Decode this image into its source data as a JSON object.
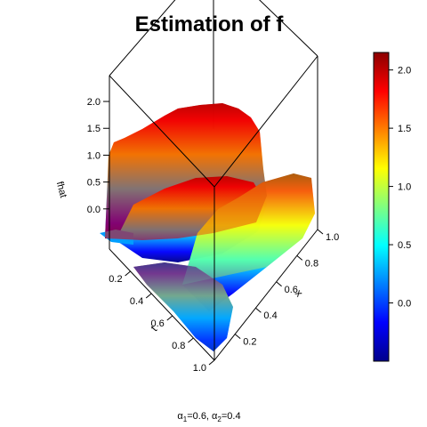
{
  "title": "Estimation of f",
  "caption": {
    "a1_sym": "α",
    "a1_sub": "1",
    "a1_val": "=0.6, ",
    "a2_sym": "α",
    "a2_sub": "2",
    "a2_val": "=0.4"
  },
  "chart_data": {
    "type": "surface3d",
    "title": "Estimation of f",
    "zlabel": "fhat",
    "xlabel": "x",
    "tlabel": "t",
    "z_ticks": [
      "0.0",
      "0.5",
      "1.0",
      "1.5",
      "2.0"
    ],
    "t_ticks": [
      "0.2",
      "0.4",
      "0.6",
      "0.8",
      "1.0"
    ],
    "x_ticks": [
      "0.2",
      "0.4",
      "0.6",
      "0.8",
      "1.0"
    ],
    "zlim": [
      -0.5,
      2.15
    ],
    "surface_sketch": [
      {
        "t": 0.1,
        "x": 1.0,
        "z": 0.0
      },
      {
        "t": 0.1,
        "x": 0.6,
        "z": 1.9
      },
      {
        "t": 0.1,
        "x": 0.25,
        "z": 2.05
      },
      {
        "t": 0.3,
        "x": 0.3,
        "z": 1.2
      },
      {
        "t": 0.5,
        "x": 0.7,
        "z": 1.0
      },
      {
        "t": 0.7,
        "x": 0.9,
        "z": 0.3
      },
      {
        "t": 0.9,
        "x": 1.0,
        "z": 0.05
      }
    ],
    "colorbar": {
      "range": [
        -0.5,
        2.15
      ],
      "ticks": [
        "0.0",
        "0.5",
        "1.0",
        "1.5",
        "2.0"
      ],
      "colors": [
        "#00008b",
        "#0000ff",
        "#0080ff",
        "#00ffff",
        "#80ff80",
        "#ffff00",
        "#ff8000",
        "#ff0000",
        "#8b0000"
      ]
    }
  }
}
